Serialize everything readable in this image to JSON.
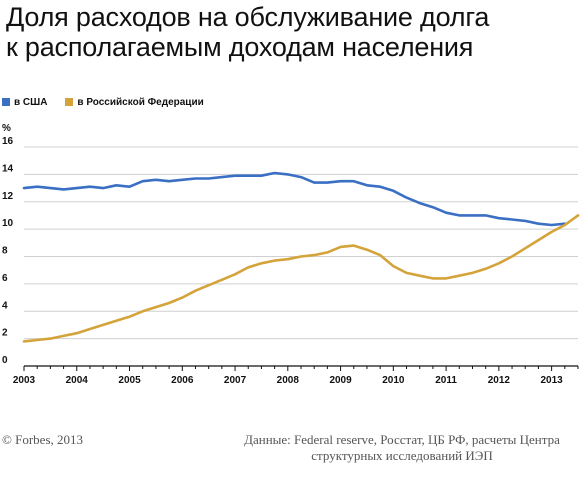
{
  "title_line1": "Доля расходов на обслуживание долга",
  "title_line2": "к располагаемым доходам населения",
  "legend": [
    {
      "label": "в США",
      "color": "#3a6fc4"
    },
    {
      "label": "в Российской Федерации",
      "color": "#d4a33a"
    }
  ],
  "footer": {
    "copyright": "© Forbes, 2013",
    "source_line1": "Данные: Federal reserve, Росстат, ЦБ РФ, расчеты Центра",
    "source_line2": "структурных исследований ИЭП"
  },
  "chart_data": {
    "type": "line",
    "ylabel": "%",
    "xlabel": "",
    "ylim": [
      0,
      16
    ],
    "yticks": [
      0,
      2,
      4,
      6,
      8,
      10,
      12,
      14,
      16
    ],
    "xlim": [
      2003,
      2013.5
    ],
    "xticks": [
      "2003",
      "2004",
      "2005",
      "2006",
      "2007",
      "2008",
      "2009",
      "2010",
      "2011",
      "2012",
      "2013"
    ],
    "grid": true,
    "legend_position": "top-left",
    "series": [
      {
        "name": "в США",
        "color": "#3a6fc4",
        "x": [
          2003.0,
          2003.25,
          2003.5,
          2003.75,
          2004.0,
          2004.25,
          2004.5,
          2004.75,
          2005.0,
          2005.25,
          2005.5,
          2005.75,
          2006.0,
          2006.25,
          2006.5,
          2006.75,
          2007.0,
          2007.25,
          2007.5,
          2007.75,
          2008.0,
          2008.25,
          2008.5,
          2008.75,
          2009.0,
          2009.25,
          2009.5,
          2009.75,
          2010.0,
          2010.25,
          2010.5,
          2010.75,
          2011.0,
          2011.25,
          2011.5,
          2011.75,
          2012.0,
          2012.25,
          2012.5,
          2012.75,
          2013.0,
          2013.25
        ],
        "values": [
          13.0,
          13.1,
          13.0,
          12.9,
          13.0,
          13.1,
          13.0,
          13.2,
          13.1,
          13.5,
          13.6,
          13.5,
          13.6,
          13.7,
          13.7,
          13.8,
          13.9,
          13.9,
          13.9,
          14.1,
          14.0,
          13.8,
          13.4,
          13.4,
          13.5,
          13.5,
          13.2,
          13.1,
          12.8,
          12.3,
          11.9,
          11.6,
          11.2,
          11.0,
          11.0,
          11.0,
          10.8,
          10.7,
          10.6,
          10.4,
          10.3,
          10.4
        ]
      },
      {
        "name": "в Российской Федерации",
        "color": "#d4a33a",
        "x": [
          2003.0,
          2003.25,
          2003.5,
          2003.75,
          2004.0,
          2004.25,
          2004.5,
          2004.75,
          2005.0,
          2005.25,
          2005.5,
          2005.75,
          2006.0,
          2006.25,
          2006.5,
          2006.75,
          2007.0,
          2007.25,
          2007.5,
          2007.75,
          2008.0,
          2008.25,
          2008.5,
          2008.75,
          2009.0,
          2009.25,
          2009.5,
          2009.75,
          2010.0,
          2010.25,
          2010.5,
          2010.75,
          2011.0,
          2011.25,
          2011.5,
          2011.75,
          2012.0,
          2012.25,
          2012.5,
          2012.75,
          2013.0,
          2013.25,
          2013.5
        ],
        "values": [
          1.8,
          1.9,
          2.0,
          2.2,
          2.4,
          2.7,
          3.0,
          3.3,
          3.6,
          4.0,
          4.3,
          4.6,
          5.0,
          5.5,
          5.9,
          6.3,
          6.7,
          7.2,
          7.5,
          7.7,
          7.8,
          8.0,
          8.1,
          8.3,
          8.7,
          8.8,
          8.5,
          8.1,
          7.3,
          6.8,
          6.6,
          6.4,
          6.4,
          6.6,
          6.8,
          7.1,
          7.5,
          8.0,
          8.6,
          9.2,
          9.8,
          10.3,
          11.0
        ]
      }
    ]
  }
}
